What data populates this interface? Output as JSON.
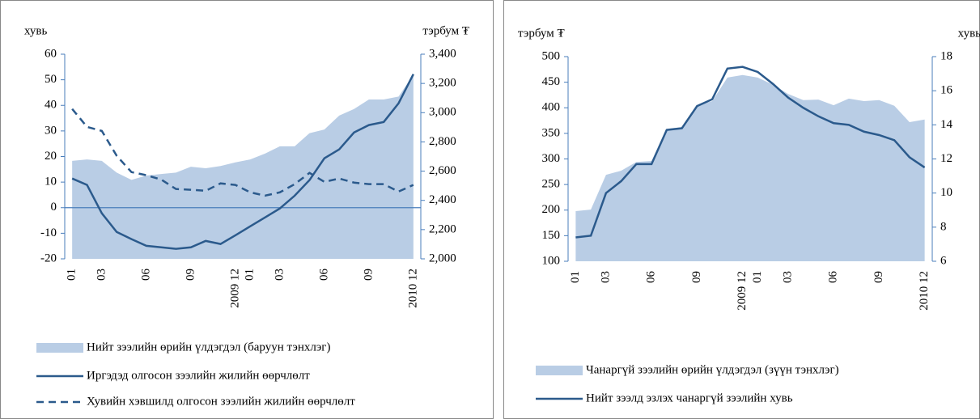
{
  "chart_data": [
    {
      "type": "combo",
      "ylabel": "хувь",
      "y2label": "тэрбум ₮",
      "categories": [
        "01",
        null,
        "03",
        null,
        null,
        "06",
        null,
        null,
        "09",
        null,
        null,
        "2009 12",
        "01",
        null,
        "03",
        null,
        null,
        "06",
        null,
        null,
        "09",
        null,
        null,
        "2010 12"
      ],
      "ylim": [
        -20,
        60
      ],
      "yticks": [
        -20,
        -10,
        0,
        10,
        20,
        30,
        40,
        50,
        60
      ],
      "y2lim": [
        2000,
        3400
      ],
      "y2ticks": [
        {
          "value": 2000,
          "label": "2,000"
        },
        {
          "value": 2200,
          "label": "2,200"
        },
        {
          "value": 2400,
          "label": "2,400"
        },
        {
          "value": 2600,
          "label": "2,600"
        },
        {
          "value": 2800,
          "label": "2,800"
        },
        {
          "value": 3000,
          "label": "3,000"
        },
        {
          "value": 3200,
          "label": "3,200"
        },
        {
          "value": 3400,
          "label": "3,400"
        }
      ],
      "zero_line": true,
      "series": [
        {
          "name": "Нийт зээлийн өрийн үлдэгдэл (баруун тэнхлэг)",
          "kind": "area",
          "axis": "y2",
          "color": "#b9cde5",
          "values": [
            2670,
            2680,
            2670,
            2590,
            2540,
            2570,
            2580,
            2590,
            2630,
            2620,
            2635,
            2660,
            2680,
            2720,
            2770,
            2770,
            2860,
            2885,
            2980,
            3025,
            3090,
            3090,
            3110,
            3260
          ]
        },
        {
          "name": "Иргэдэд олгосон зээлийн жилийн өөрчлөлт",
          "kind": "line",
          "axis": "y",
          "color": "#2b5a8c",
          "dashed": false,
          "values": [
            11.4,
            8.9,
            -2.2,
            -9.5,
            -12.3,
            -14.9,
            -15.5,
            -16.1,
            -15.5,
            -13,
            -14.2,
            -10.8,
            -7.3,
            -3.8,
            -0.3,
            4.7,
            10.8,
            19.3,
            22.8,
            29.4,
            32.3,
            33.5,
            40.8,
            52.2
          ]
        },
        {
          "name": "Хувийн хэвшилд олгосон зээлийн жилийн өөрчлөлт",
          "kind": "line",
          "axis": "y",
          "color": "#2b5a8c",
          "dashed": true,
          "values": [
            38.6,
            31.6,
            30,
            20.3,
            13.9,
            12.7,
            11,
            7.3,
            7,
            6.6,
            9.5,
            8.9,
            6,
            4.7,
            6,
            9.2,
            13.6,
            10.1,
            11.4,
            9.8,
            9.2,
            9.2,
            6.3,
            8.9
          ]
        }
      ]
    },
    {
      "type": "combo",
      "ylabel": "тэрбум ₮",
      "y2label": "хувь",
      "categories": [
        "01",
        null,
        "03",
        null,
        null,
        "06",
        null,
        null,
        "09",
        null,
        null,
        "2009 12",
        "01",
        null,
        "03",
        null,
        null,
        "06",
        null,
        null,
        "09",
        null,
        null,
        "2010 12"
      ],
      "ylim": [
        100,
        500
      ],
      "yticks": [
        100,
        150,
        200,
        250,
        300,
        350,
        400,
        450,
        500
      ],
      "y2lim": [
        6,
        18
      ],
      "y2ticks": [
        6,
        8,
        10,
        12,
        14,
        16,
        18
      ],
      "zero_line": false,
      "series": [
        {
          "name": "Чанаргүй зээлийн өрийн үлдэгдэл (зүүн тэнхлэг)",
          "kind": "area",
          "axis": "y",
          "color": "#b9cde5",
          "values": [
            198,
            201,
            269,
            277,
            294,
            296,
            359,
            362,
            405,
            413,
            459,
            464,
            459,
            445,
            427,
            415,
            416,
            405,
            418,
            413,
            415,
            404,
            372,
            377
          ]
        },
        {
          "name": "Нийт зээлд эзлэх  чанаргүй зээлийн хувь",
          "kind": "line",
          "axis": "y2",
          "color": "#2b5a8c",
          "dashed": false,
          "values": [
            7.4,
            7.5,
            10.0,
            10.7,
            11.7,
            11.7,
            13.7,
            13.8,
            15.1,
            15.5,
            17.3,
            17.4,
            17.1,
            16.4,
            15.6,
            15.0,
            14.5,
            14.1,
            14.0,
            13.6,
            13.4,
            13.1,
            12.1,
            11.5
          ]
        }
      ]
    }
  ]
}
